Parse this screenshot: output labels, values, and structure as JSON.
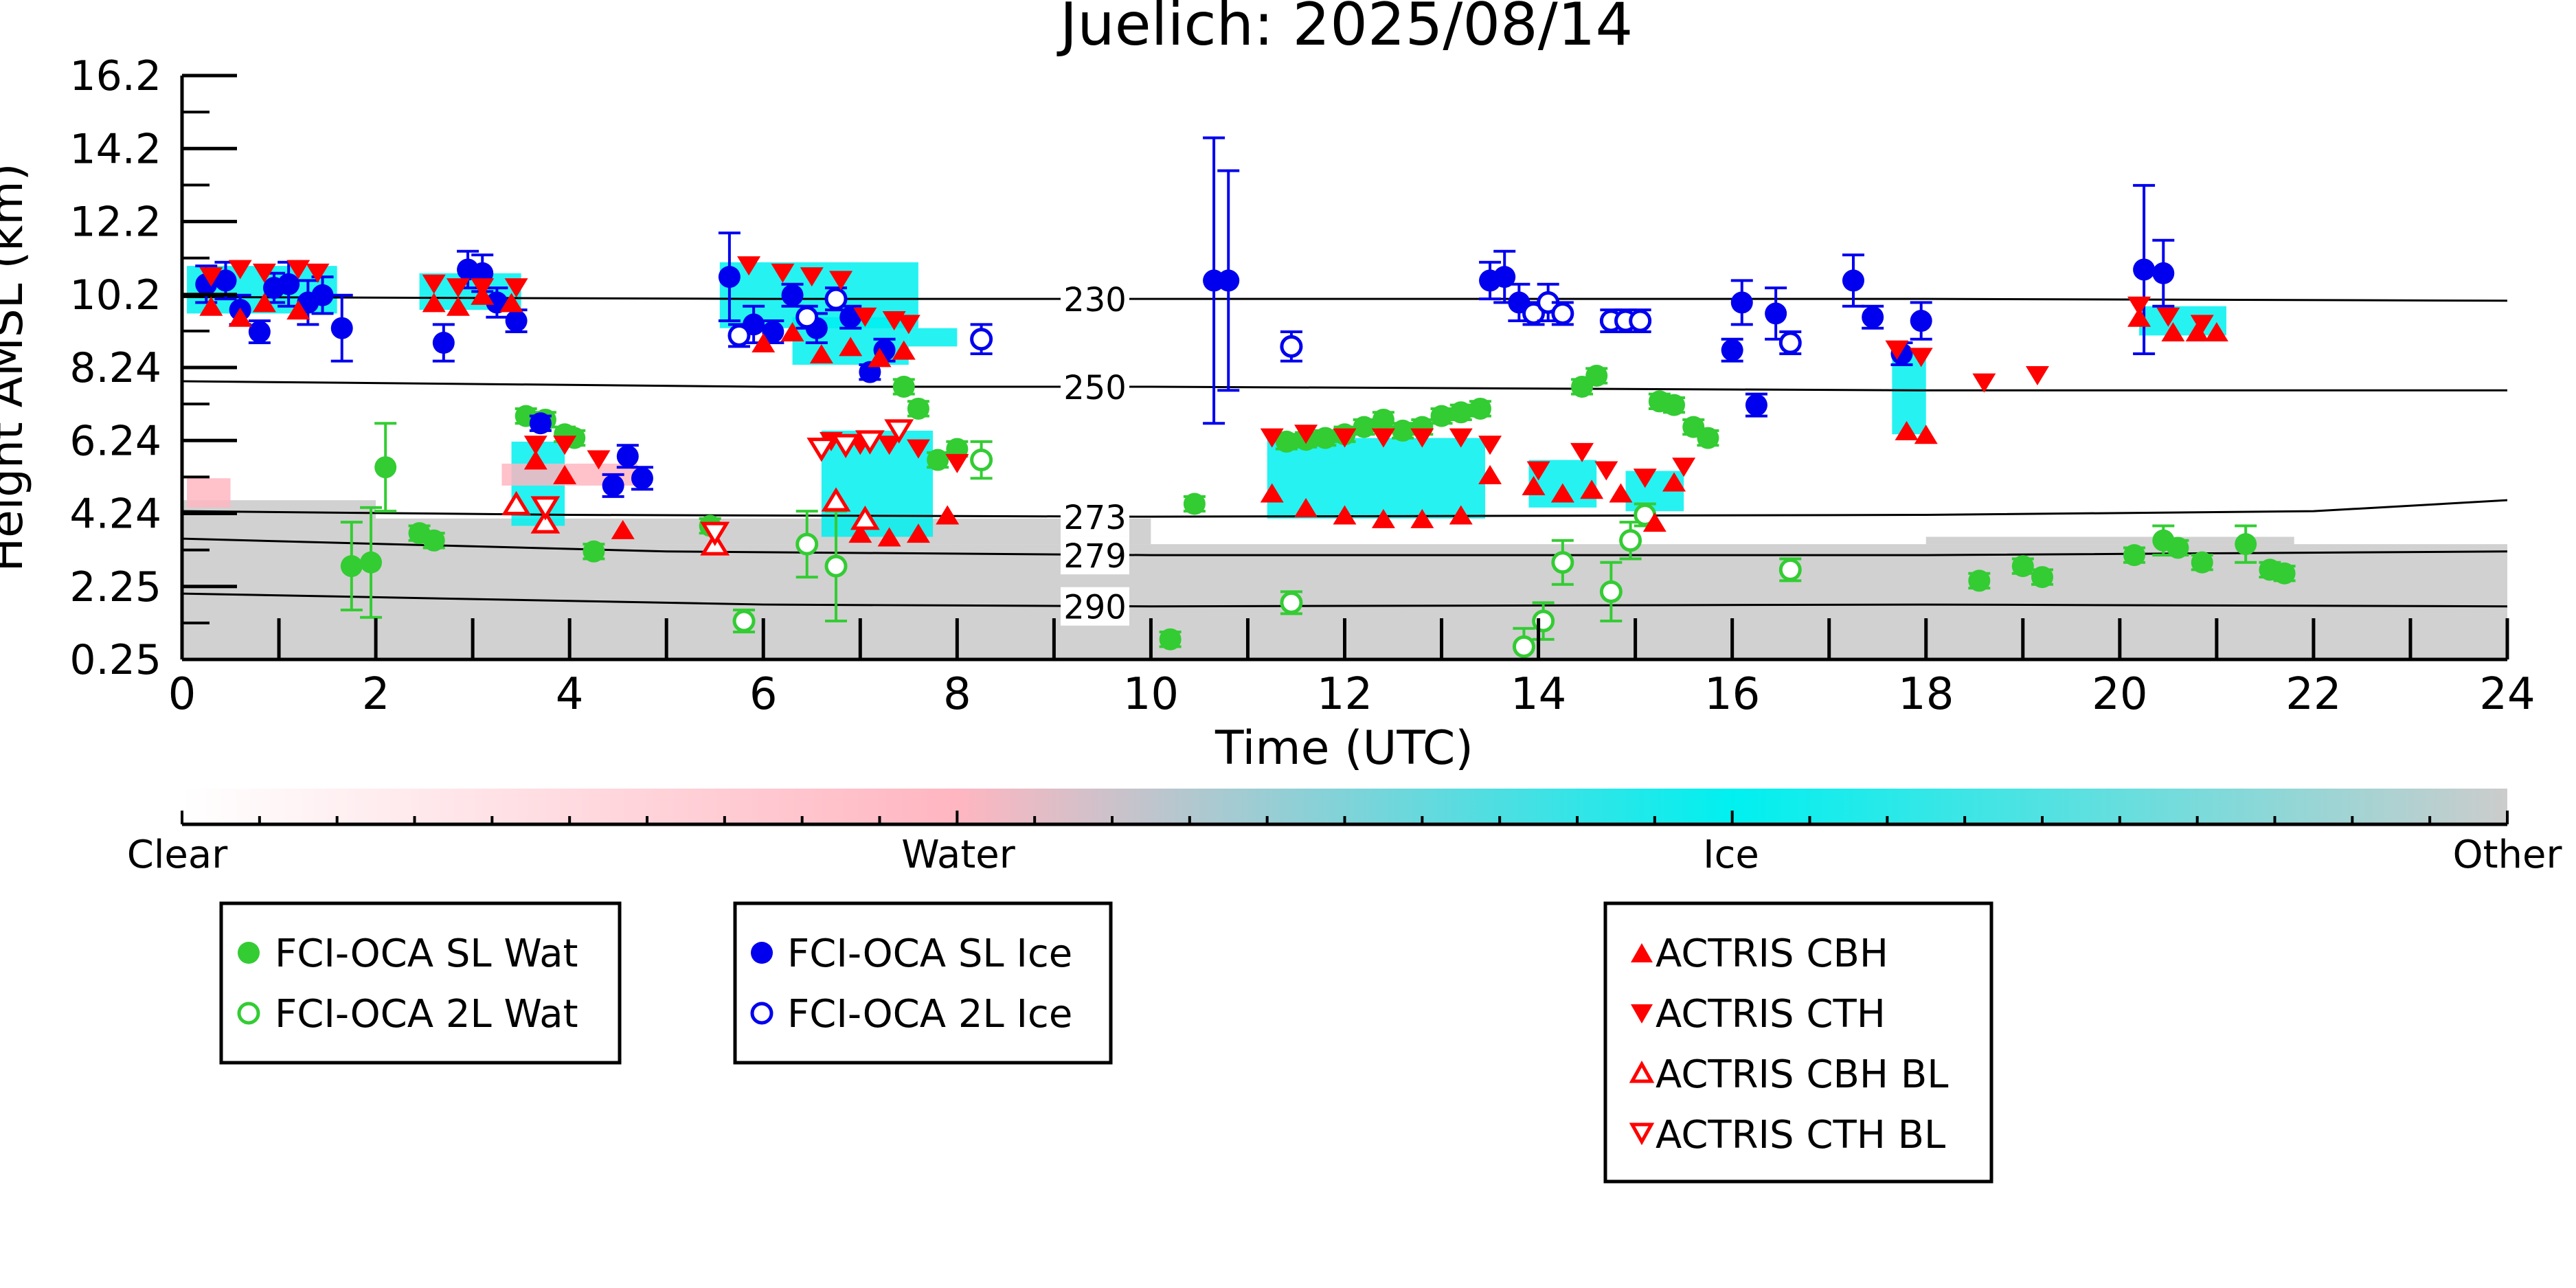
{
  "chart_data": {
    "type": "scatter",
    "title": "Juelich: 2025/08/14",
    "xlabel": "Time (UTC)",
    "ylabel": "Height AMSL (km)",
    "xlim": [
      0,
      24
    ],
    "ylim": [
      0.25,
      16.2
    ],
    "xticks": [
      "0",
      "2",
      "4",
      "6",
      "8",
      "10",
      "12",
      "14",
      "16",
      "18",
      "20",
      "22",
      "24"
    ],
    "yticks": [
      "0.25",
      "2.25",
      "4.24",
      "6.24",
      "8.24",
      "10.2",
      "12.2",
      "14.2",
      "16.2"
    ],
    "isotherms": [
      {
        "label": "230",
        "points": [
          [
            0,
            10.15
          ],
          [
            6,
            10.1
          ],
          [
            10,
            10.1
          ],
          [
            18,
            10.1
          ],
          [
            24,
            10.05
          ]
        ]
      },
      {
        "label": "250",
        "points": [
          [
            0,
            7.85
          ],
          [
            6,
            7.7
          ],
          [
            10,
            7.7
          ],
          [
            18,
            7.6
          ],
          [
            24,
            7.6
          ]
        ]
      },
      {
        "label": "273",
        "points": [
          [
            0,
            4.3
          ],
          [
            4,
            4.2
          ],
          [
            10,
            4.15
          ],
          [
            18,
            4.2
          ],
          [
            22,
            4.3
          ],
          [
            24,
            4.6
          ]
        ]
      },
      {
        "label": "279",
        "points": [
          [
            0,
            3.55
          ],
          [
            5,
            3.2
          ],
          [
            10,
            3.1
          ],
          [
            18,
            3.1
          ],
          [
            24,
            3.2
          ]
        ]
      },
      {
        "label": "290",
        "points": [
          [
            0,
            2.05
          ],
          [
            6,
            1.75
          ],
          [
            10,
            1.7
          ],
          [
            18,
            1.75
          ],
          [
            24,
            1.7
          ]
        ]
      }
    ],
    "cloud_type_colorbar": {
      "labels": [
        "Clear",
        "Water",
        "Ice",
        "Other"
      ],
      "colors": [
        "#ffffff",
        "#ffb6c1",
        "#00f0f0",
        "#cccccc"
      ]
    },
    "series": [
      {
        "name": "FCI-OCA SL Wat",
        "color": "#33cc33",
        "marker": "circle",
        "filled": true,
        "points": [
          [
            1.75,
            2.8,
            1.2
          ],
          [
            1.95,
            2.9,
            1.5
          ],
          [
            2.1,
            5.5,
            1.2
          ],
          [
            2.45,
            3.7,
            0.2
          ],
          [
            2.6,
            3.5,
            0.2
          ],
          [
            3.55,
            6.9,
            0.2
          ],
          [
            3.75,
            6.8,
            0.2
          ],
          [
            3.95,
            6.4,
            0.2
          ],
          [
            4.05,
            6.3,
            0.2
          ],
          [
            4.25,
            3.2,
            0.2
          ],
          [
            5.45,
            3.9,
            0.2
          ],
          [
            10.2,
            0.8,
            0.2
          ],
          [
            10.45,
            4.5,
            0.2
          ],
          [
            11.4,
            6.2,
            0.2
          ],
          [
            11.6,
            6.25,
            0.2
          ],
          [
            11.8,
            6.3,
            0.2
          ],
          [
            12.0,
            6.4,
            0.2
          ],
          [
            12.2,
            6.6,
            0.2
          ],
          [
            12.4,
            6.8,
            0.2
          ],
          [
            12.6,
            6.5,
            0.2
          ],
          [
            12.8,
            6.6,
            0.2
          ],
          [
            13.0,
            6.9,
            0.2
          ],
          [
            13.2,
            7.0,
            0.2
          ],
          [
            13.4,
            7.1,
            0.2
          ],
          [
            14.45,
            7.7,
            0.2
          ],
          [
            14.6,
            8.0,
            0.2
          ],
          [
            15.25,
            7.3,
            0.2
          ],
          [
            15.4,
            7.2,
            0.2
          ],
          [
            15.6,
            6.6,
            0.2
          ],
          [
            15.75,
            6.3,
            0.2
          ],
          [
            7.45,
            7.7,
            0.2
          ],
          [
            7.6,
            7.1,
            0.2
          ],
          [
            7.8,
            5.7,
            0.2
          ],
          [
            8.0,
            6.0,
            0.2
          ],
          [
            18.55,
            2.4,
            0.2
          ],
          [
            19.0,
            2.8,
            0.2
          ],
          [
            19.2,
            2.5,
            0.2
          ],
          [
            20.15,
            3.1,
            0.2
          ],
          [
            20.45,
            3.5,
            0.4
          ],
          [
            20.6,
            3.3,
            0.2
          ],
          [
            20.85,
            2.9,
            0.2
          ],
          [
            21.3,
            3.4,
            0.5
          ],
          [
            21.55,
            2.7,
            0.2
          ],
          [
            21.7,
            2.6,
            0.2
          ]
        ]
      },
      {
        "name": "FCI-OCA 2L Wat",
        "color": "#33cc33",
        "marker": "circle",
        "filled": false,
        "points": [
          [
            5.8,
            1.3,
            0.3
          ],
          [
            6.45,
            3.4,
            0.9
          ],
          [
            6.75,
            2.8,
            1.5
          ],
          [
            8.25,
            5.7,
            0.5
          ],
          [
            11.45,
            1.8,
            0.3
          ],
          [
            13.85,
            0.6,
            0.5
          ],
          [
            14.05,
            1.3,
            0.5
          ],
          [
            14.25,
            2.9,
            0.6
          ],
          [
            14.75,
            2.1,
            0.8
          ],
          [
            14.95,
            3.5,
            0.5
          ],
          [
            15.1,
            4.2,
            0.3
          ],
          [
            16.6,
            2.7,
            0.3
          ]
        ]
      },
      {
        "name": "FCI-OCA SL Ice",
        "color": "#0000ee",
        "marker": "circle",
        "filled": true,
        "points": [
          [
            0.25,
            10.5,
            0.5
          ],
          [
            0.45,
            10.6,
            0.5
          ],
          [
            0.6,
            9.8,
            0.4
          ],
          [
            0.8,
            9.2,
            0.3
          ],
          [
            0.95,
            10.4,
            0.4
          ],
          [
            1.1,
            10.5,
            0.6
          ],
          [
            1.3,
            10.0,
            0.6
          ],
          [
            1.45,
            10.2,
            0.5
          ],
          [
            1.65,
            9.3,
            0.9
          ],
          [
            2.7,
            8.9,
            0.5
          ],
          [
            2.95,
            10.9,
            0.5
          ],
          [
            3.1,
            10.8,
            0.5
          ],
          [
            3.25,
            10.0,
            0.4
          ],
          [
            3.45,
            9.5,
            0.3
          ],
          [
            3.7,
            6.7,
            0.2
          ],
          [
            4.45,
            5.0,
            0.3
          ],
          [
            4.6,
            5.8,
            0.3
          ],
          [
            4.75,
            5.2,
            0.3
          ],
          [
            5.65,
            10.7,
            1.2
          ],
          [
            5.9,
            9.4,
            0.5
          ],
          [
            6.1,
            9.2,
            0.3
          ],
          [
            6.3,
            10.2,
            0.3
          ],
          [
            6.55,
            9.3,
            0.4
          ],
          [
            6.9,
            9.6,
            0.3
          ],
          [
            7.1,
            8.1,
            0.2
          ],
          [
            7.25,
            8.7,
            0.3
          ],
          [
            10.65,
            10.6,
            3.9
          ],
          [
            10.8,
            10.6,
            3.0
          ],
          [
            13.5,
            10.6,
            0.5
          ],
          [
            13.65,
            10.7,
            0.7
          ],
          [
            13.8,
            10.0,
            0.5
          ],
          [
            16.0,
            8.7,
            0.3
          ],
          [
            16.1,
            10.0,
            0.6
          ],
          [
            16.25,
            7.2,
            0.3
          ],
          [
            16.45,
            9.7,
            0.7
          ],
          [
            17.25,
            10.6,
            0.7
          ],
          [
            17.45,
            9.6,
            0.3
          ],
          [
            17.75,
            8.6,
            0.3
          ],
          [
            17.95,
            9.5,
            0.5
          ],
          [
            20.25,
            10.9,
            2.3
          ],
          [
            20.45,
            10.8,
            0.9
          ]
        ]
      },
      {
        "name": "FCI-OCA 2L Ice",
        "color": "#0000ee",
        "marker": "circle",
        "filled": false,
        "points": [
          [
            5.75,
            9.1,
            0.3
          ],
          [
            6.45,
            9.6,
            0.3
          ],
          [
            6.75,
            10.1,
            0.3
          ],
          [
            8.25,
            9.0,
            0.4
          ],
          [
            11.45,
            8.8,
            0.4
          ],
          [
            13.95,
            9.7,
            0.3
          ],
          [
            14.1,
            10.0,
            0.5
          ],
          [
            14.25,
            9.7,
            0.3
          ],
          [
            14.75,
            9.5,
            0.3
          ],
          [
            14.9,
            9.5,
            0.3
          ],
          [
            15.05,
            9.5,
            0.3
          ],
          [
            16.6,
            8.9,
            0.3
          ]
        ]
      },
      {
        "name": "ACTRIS CBH",
        "color": "#ff0000",
        "marker": "triangle-up",
        "filled": true,
        "points": [
          [
            0.3,
            9.9
          ],
          [
            0.6,
            9.6
          ],
          [
            0.85,
            10.0
          ],
          [
            1.2,
            9.8
          ],
          [
            2.6,
            10.0
          ],
          [
            2.85,
            9.9
          ],
          [
            3.1,
            10.2
          ],
          [
            3.4,
            10.0
          ],
          [
            3.65,
            5.7
          ],
          [
            3.95,
            5.3
          ],
          [
            4.55,
            3.8
          ],
          [
            6.0,
            8.9
          ],
          [
            6.3,
            9.2
          ],
          [
            6.6,
            8.6
          ],
          [
            6.9,
            8.8
          ],
          [
            7.2,
            8.5
          ],
          [
            7.45,
            8.7
          ],
          [
            7.0,
            3.7
          ],
          [
            7.3,
            3.6
          ],
          [
            7.6,
            3.7
          ],
          [
            7.9,
            4.2
          ],
          [
            11.25,
            4.8
          ],
          [
            11.6,
            4.4
          ],
          [
            12.0,
            4.2
          ],
          [
            12.4,
            4.1
          ],
          [
            12.8,
            4.1
          ],
          [
            13.2,
            4.2
          ],
          [
            13.5,
            5.3
          ],
          [
            13.95,
            5.0
          ],
          [
            14.25,
            4.8
          ],
          [
            14.55,
            4.9
          ],
          [
            14.85,
            4.8
          ],
          [
            15.2,
            4.0
          ],
          [
            15.4,
            5.1
          ],
          [
            17.8,
            6.5
          ],
          [
            18.0,
            6.4
          ],
          [
            20.2,
            9.6
          ],
          [
            20.55,
            9.2
          ],
          [
            20.8,
            9.2
          ],
          [
            21.0,
            9.2
          ]
        ]
      },
      {
        "name": "ACTRIS CTH",
        "color": "#ff0000",
        "marker": "triangle-down",
        "filled": true,
        "points": [
          [
            0.3,
            10.7
          ],
          [
            0.6,
            10.9
          ],
          [
            0.85,
            10.8
          ],
          [
            1.2,
            10.9
          ],
          [
            1.4,
            10.8
          ],
          [
            2.6,
            10.5
          ],
          [
            2.85,
            10.4
          ],
          [
            3.1,
            10.4
          ],
          [
            3.45,
            10.4
          ],
          [
            3.65,
            6.1
          ],
          [
            3.95,
            6.1
          ],
          [
            4.3,
            5.7
          ],
          [
            5.85,
            11.0
          ],
          [
            6.2,
            10.8
          ],
          [
            6.5,
            10.7
          ],
          [
            6.8,
            10.6
          ],
          [
            7.05,
            9.6
          ],
          [
            7.35,
            9.5
          ],
          [
            7.5,
            9.4
          ],
          [
            6.7,
            6.2
          ],
          [
            7.0,
            6.1
          ],
          [
            7.3,
            6.1
          ],
          [
            7.6,
            6.0
          ],
          [
            8.0,
            5.6
          ],
          [
            11.25,
            6.3
          ],
          [
            11.6,
            6.4
          ],
          [
            12.0,
            6.3
          ],
          [
            12.4,
            6.3
          ],
          [
            12.8,
            6.3
          ],
          [
            13.2,
            6.3
          ],
          [
            13.5,
            6.1
          ],
          [
            14.0,
            5.4
          ],
          [
            14.45,
            5.9
          ],
          [
            14.7,
            5.4
          ],
          [
            15.1,
            5.2
          ],
          [
            15.5,
            5.5
          ],
          [
            17.7,
            8.7
          ],
          [
            17.95,
            8.5
          ],
          [
            18.6,
            7.8
          ],
          [
            19.15,
            8.0
          ],
          [
            20.2,
            9.9
          ],
          [
            20.5,
            9.6
          ],
          [
            20.85,
            9.4
          ]
        ]
      },
      {
        "name": "ACTRIS CBH BL",
        "color": "#ff0000",
        "marker": "triangle-up",
        "filled": false,
        "points": [
          [
            3.45,
            4.5
          ],
          [
            3.75,
            4.0
          ],
          [
            5.5,
            3.4
          ],
          [
            6.75,
            4.6
          ],
          [
            7.05,
            4.1
          ]
        ]
      },
      {
        "name": "ACTRIS CTH BL",
        "color": "#ff0000",
        "marker": "triangle-down",
        "filled": false,
        "points": [
          [
            3.75,
            4.4
          ],
          [
            5.5,
            3.7
          ],
          [
            6.6,
            6.0
          ],
          [
            6.85,
            6.1
          ],
          [
            7.1,
            6.2
          ],
          [
            7.4,
            6.5
          ]
        ]
      }
    ]
  },
  "legends": [
    {
      "entries": [
        "FCI-OCA SL Wat",
        "FCI-OCA 2L Wat"
      ]
    },
    {
      "entries": [
        "FCI-OCA SL Ice",
        "FCI-OCA 2L Ice"
      ]
    },
    {
      "entries": [
        "ACTRIS CBH",
        "ACTRIS CTH",
        "ACTRIS CBH BL",
        "ACTRIS CTH BL"
      ]
    }
  ]
}
